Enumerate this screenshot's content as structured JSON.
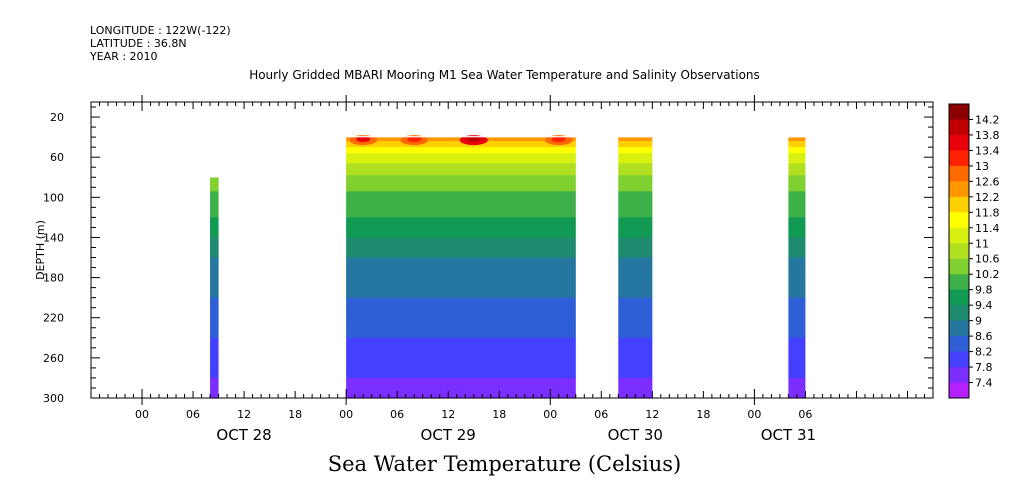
{
  "header": {
    "longitude": "LONGITUDE : 122W(-122)",
    "latitude": "LATITUDE : 36.8N",
    "year": "YEAR : 2010"
  },
  "chart_data": {
    "type": "heatmap",
    "title": "Hourly Gridded MBARI Mooring M1 Sea Water Temperature and Salinity Observations",
    "footer": "Sea Water Temperature (Celsius)",
    "ylabel": "DEPTH (m)",
    "xlabel": "",
    "x_range_hours": [
      -6,
      93
    ],
    "y_range": [
      5,
      300
    ],
    "y_inverted": true,
    "y_ticks": [
      20,
      60,
      100,
      140,
      180,
      220,
      260,
      300
    ],
    "x_hour_ticks": [
      {
        "hour": 0,
        "label": "00"
      },
      {
        "hour": 6,
        "label": "06"
      },
      {
        "hour": 12,
        "label": "12"
      },
      {
        "hour": 18,
        "label": "18"
      },
      {
        "hour": 24,
        "label": "00"
      },
      {
        "hour": 30,
        "label": "06"
      },
      {
        "hour": 36,
        "label": "12"
      },
      {
        "hour": 42,
        "label": "18"
      },
      {
        "hour": 48,
        "label": "00"
      },
      {
        "hour": 54,
        "label": "06"
      },
      {
        "hour": 60,
        "label": "12"
      },
      {
        "hour": 66,
        "label": "18"
      },
      {
        "hour": 72,
        "label": "00"
      },
      {
        "hour": 78,
        "label": "06"
      }
    ],
    "date_labels": [
      {
        "hour": 12,
        "label": "OCT 28"
      },
      {
        "hour": 36,
        "label": "OCT 29"
      },
      {
        "hour": 58,
        "label": "OCT 30"
      },
      {
        "hour": 76,
        "label": "OCT 31"
      }
    ],
    "data_blocks": [
      {
        "start": 8,
        "end": 9,
        "top_depth": 80,
        "bottom_depth": 300
      },
      {
        "start": 24,
        "end": 51,
        "top_depth": 40,
        "bottom_depth": 300
      },
      {
        "start": 56,
        "end": 60,
        "top_depth": 40,
        "bottom_depth": 300
      },
      {
        "start": 76,
        "end": 78,
        "top_depth": 40,
        "bottom_depth": 300
      }
    ],
    "depth_profile": [
      {
        "depth": 40,
        "temp": 12.4
      },
      {
        "depth": 50,
        "temp": 11.8
      },
      {
        "depth": 60,
        "temp": 11.2
      },
      {
        "depth": 80,
        "temp": 10.5
      },
      {
        "depth": 100,
        "temp": 10.1
      },
      {
        "depth": 120,
        "temp": 9.8
      },
      {
        "depth": 140,
        "temp": 9.4
      },
      {
        "depth": 160,
        "temp": 9.0
      },
      {
        "depth": 180,
        "temp": 8.8
      },
      {
        "depth": 220,
        "temp": 8.4
      },
      {
        "depth": 260,
        "temp": 8.0
      },
      {
        "depth": 300,
        "temp": 7.6
      }
    ],
    "surface_hotspots": [
      {
        "hour": 26,
        "temp": 13.0
      },
      {
        "hour": 32,
        "temp": 12.8
      },
      {
        "hour": 39,
        "temp": 13.4
      },
      {
        "hour": 49,
        "temp": 12.8
      }
    ],
    "colorbar": {
      "labels": [
        "14.2",
        "13.8",
        "13.4",
        "13",
        "12.6",
        "12.2",
        "11.8",
        "11.4",
        "11",
        "10.6",
        "10.2",
        "9.8",
        "9.4",
        "9",
        "8.6",
        "8.2",
        "7.8",
        "7.4"
      ],
      "values": [
        14.2,
        13.8,
        13.4,
        13.0,
        12.6,
        12.2,
        11.8,
        11.4,
        11.0,
        10.6,
        10.2,
        9.8,
        9.4,
        9.0,
        8.6,
        8.2,
        7.8,
        7.4
      ],
      "colors": [
        "#8b0000",
        "#c00000",
        "#e8000a",
        "#ff2200",
        "#ff6a00",
        "#ff9800",
        "#ffd000",
        "#ffff00",
        "#d8f010",
        "#b0e020",
        "#80d030",
        "#3eb049",
        "#119a53",
        "#1e8a6e",
        "#2577a0",
        "#2f5fd6",
        "#4440ff",
        "#7b2eff",
        "#b520ff"
      ]
    }
  }
}
